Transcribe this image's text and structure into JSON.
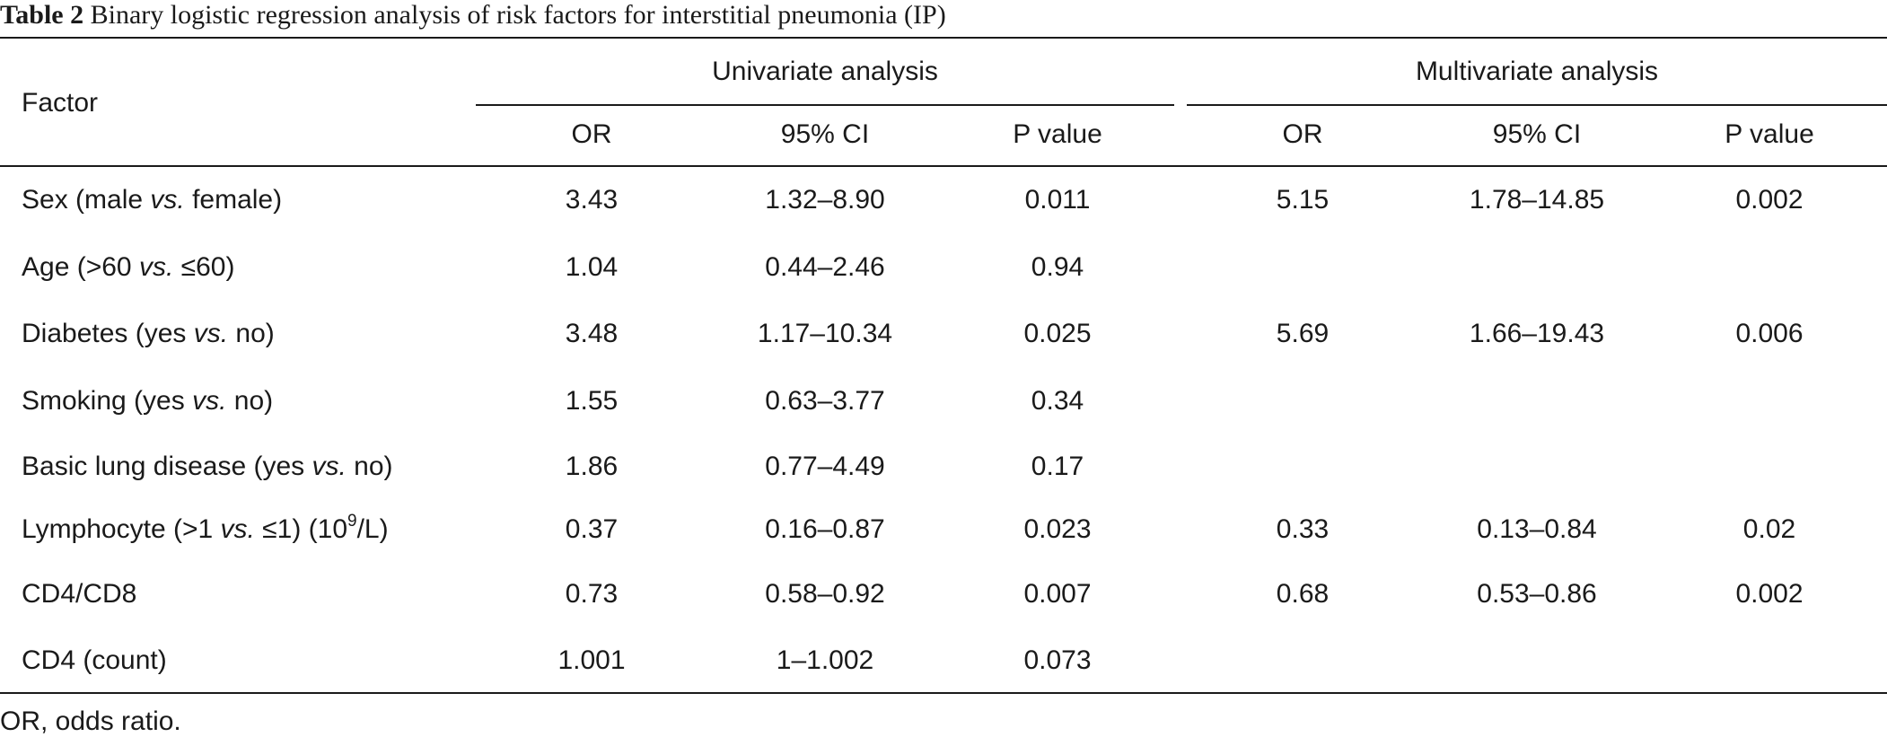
{
  "table": {
    "caption_label": "Table 2",
    "caption_text": "Binary logistic regression analysis of risk factors for interstitial pneumonia (IP)",
    "factor_header": "Factor",
    "group_headers": [
      "Univariate analysis",
      "Multivariate analysis"
    ],
    "sub_headers": [
      "OR",
      "95% CI",
      "P value",
      "OR",
      "95% CI",
      "P value"
    ],
    "rows": [
      {
        "factor": [
          "Sex (male ",
          "vs.",
          " female)",
          "",
          ""
        ],
        "cells": [
          "3.43",
          "1.32–8.90",
          "0.011",
          "5.15",
          "1.78–14.85",
          "0.002"
        ]
      },
      {
        "factor": [
          "Age (>60 ",
          "vs.",
          " ≤60)",
          "",
          ""
        ],
        "cells": [
          "1.04",
          "0.44–2.46",
          "0.94",
          "",
          "",
          ""
        ]
      },
      {
        "factor": [
          "Diabetes (yes ",
          "vs.",
          " no)",
          "",
          ""
        ],
        "cells": [
          "3.48",
          "1.17–10.34",
          "0.025",
          "5.69",
          "1.66–19.43",
          "0.006"
        ]
      },
      {
        "factor": [
          "Smoking (yes ",
          "vs.",
          " no)",
          "",
          ""
        ],
        "cells": [
          "1.55",
          "0.63–3.77",
          "0.34",
          "",
          "",
          ""
        ]
      },
      {
        "factor": [
          "Basic lung disease (yes ",
          "vs.",
          " no)",
          "",
          ""
        ],
        "cells": [
          "1.86",
          "0.77–4.49",
          "0.17",
          "",
          "",
          ""
        ]
      },
      {
        "factor": [
          "Lymphocyte (>1 ",
          "vs.",
          " ≤1) (10",
          "9",
          "/L)"
        ],
        "cells": [
          "0.37",
          "0.16–0.87",
          "0.023",
          "0.33",
          "0.13–0.84",
          "0.02"
        ]
      },
      {
        "factor": [
          "CD4/CD8",
          "",
          "",
          "",
          ""
        ],
        "cells": [
          "0.73",
          "0.58–0.92",
          "0.007",
          "0.68",
          "0.53–0.86",
          "0.002"
        ]
      },
      {
        "factor": [
          "CD4 (count)",
          "",
          "",
          "",
          ""
        ],
        "cells": [
          "1.001",
          "1–1.002",
          "0.073",
          "",
          "",
          ""
        ]
      }
    ],
    "footnote": "OR, odds ratio."
  }
}
